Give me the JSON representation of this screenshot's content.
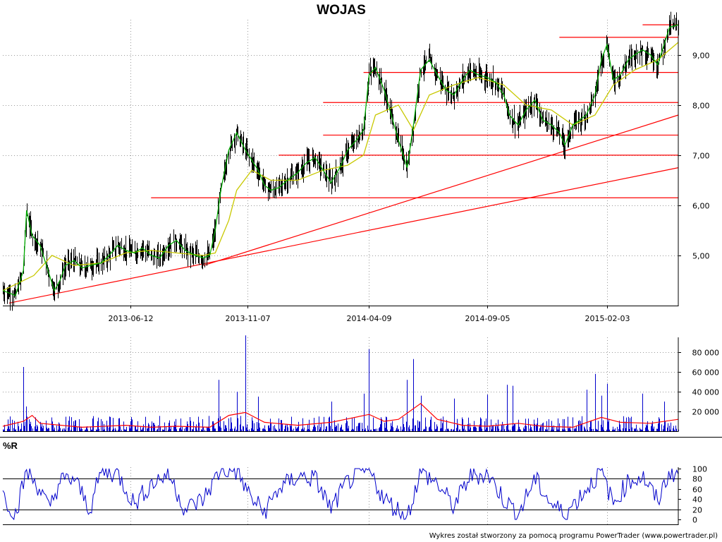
{
  "title": "WOJAS",
  "footer": "Wykres został stworzony za pomocą programu PowerTrader (www.powertrader.pl)",
  "colors": {
    "price_bars": "#000000",
    "close_line": "#00aa00",
    "moving_average": "#c8c800",
    "support_lines": "#ff0000",
    "volume_bars": "#0000cc",
    "volume_average": "#ff0000",
    "williams_r": "#0000cc"
  },
  "chart_data": [
    {
      "type": "line",
      "panel": "price",
      "title": "WOJAS",
      "x_tick_labels": [
        "2013-06-12",
        "2013-11-07",
        "2014-04-09",
        "2014-09-05",
        "2015-02-03"
      ],
      "y_tick_labels": [
        "5,00",
        "6,00",
        "7,00",
        "8,00",
        "9,00"
      ],
      "ylim": [
        4.0,
        9.7
      ],
      "grid": true,
      "series": [
        {
          "role": "close",
          "points": [
            [
              "2013-01-02",
              4.3
            ],
            [
              "2013-01-10",
              4.25
            ],
            [
              "2013-01-18",
              4.2
            ],
            [
              "2013-01-28",
              4.7
            ],
            [
              "2013-02-01",
              5.9
            ],
            [
              "2013-02-08",
              5.4
            ],
            [
              "2013-02-18",
              5.2
            ],
            [
              "2013-02-28",
              4.7
            ],
            [
              "2013-03-08",
              4.3
            ],
            [
              "2013-03-15",
              4.5
            ],
            [
              "2013-03-22",
              4.8
            ],
            [
              "2013-04-02",
              4.9
            ],
            [
              "2013-04-12",
              4.75
            ],
            [
              "2013-04-22",
              4.8
            ],
            [
              "2013-05-06",
              4.85
            ],
            [
              "2013-05-16",
              5.0
            ],
            [
              "2013-05-27",
              5.2
            ],
            [
              "2013-06-06",
              5.1
            ],
            [
              "2013-06-17",
              5.05
            ],
            [
              "2013-06-27",
              5.15
            ],
            [
              "2013-07-08",
              5.0
            ],
            [
              "2013-07-19",
              4.95
            ],
            [
              "2013-07-30",
              5.2
            ],
            [
              "2013-08-09",
              5.3
            ],
            [
              "2013-08-20",
              5.1
            ],
            [
              "2013-09-02",
              5.0
            ],
            [
              "2013-09-12",
              4.95
            ],
            [
              "2013-09-20",
              5.0
            ],
            [
              "2013-09-27",
              5.5
            ],
            [
              "2013-10-04",
              6.3
            ],
            [
              "2013-10-14",
              7.1
            ],
            [
              "2013-10-24",
              7.45
            ],
            [
              "2013-11-04",
              7.1
            ],
            [
              "2013-11-12",
              6.9
            ],
            [
              "2013-11-20",
              6.7
            ],
            [
              "2013-11-28",
              6.4
            ],
            [
              "2013-12-06",
              6.3
            ],
            [
              "2013-12-16",
              6.35
            ],
            [
              "2013-12-27",
              6.5
            ],
            [
              "2014-01-09",
              6.65
            ],
            [
              "2014-01-20",
              6.85
            ],
            [
              "2014-01-31",
              6.95
            ],
            [
              "2014-02-10",
              6.7
            ],
            [
              "2014-02-20",
              6.45
            ],
            [
              "2014-03-03",
              6.75
            ],
            [
              "2014-03-13",
              7.1
            ],
            [
              "2014-03-24",
              7.3
            ],
            [
              "2014-04-02",
              7.5
            ],
            [
              "2014-04-09",
              8.6
            ],
            [
              "2014-04-17",
              8.75
            ],
            [
              "2014-04-28",
              8.3
            ],
            [
              "2014-05-07",
              7.8
            ],
            [
              "2014-05-16",
              7.3
            ],
            [
              "2014-05-27",
              6.75
            ],
            [
              "2014-06-04",
              7.6
            ],
            [
              "2014-06-13",
              8.7
            ],
            [
              "2014-06-24",
              8.9
            ],
            [
              "2014-07-04",
              8.6
            ],
            [
              "2014-07-15",
              8.3
            ],
            [
              "2014-07-25",
              8.2
            ],
            [
              "2014-08-05",
              8.5
            ],
            [
              "2014-08-14",
              8.7
            ],
            [
              "2014-08-25",
              8.6
            ],
            [
              "2014-09-05",
              8.55
            ],
            [
              "2014-09-16",
              8.45
            ],
            [
              "2014-09-26",
              8.2
            ],
            [
              "2014-10-03",
              7.8
            ],
            [
              "2014-10-14",
              7.6
            ],
            [
              "2014-10-24",
              7.9
            ],
            [
              "2014-11-04",
              8.1
            ],
            [
              "2014-11-14",
              7.7
            ],
            [
              "2014-11-25",
              7.6
            ],
            [
              "2014-12-05",
              7.45
            ],
            [
              "2014-12-12",
              7.2
            ],
            [
              "2014-12-22",
              7.6
            ],
            [
              "2015-01-08",
              7.8
            ],
            [
              "2015-01-19",
              8.2
            ],
            [
              "2015-01-27",
              8.9
            ],
            [
              "2015-02-03",
              9.2
            ],
            [
              "2015-02-11",
              8.5
            ],
            [
              "2015-02-20",
              8.6
            ],
            [
              "2015-03-02",
              8.9
            ],
            [
              "2015-03-10",
              9.0
            ],
            [
              "2015-03-20",
              9.1
            ],
            [
              "2015-03-30",
              9.0
            ],
            [
              "2015-04-08",
              8.8
            ],
            [
              "2015-04-16",
              9.2
            ],
            [
              "2015-04-23",
              9.55
            ],
            [
              "2015-05-04",
              9.6
            ]
          ]
        },
        {
          "role": "moving_average",
          "points": [
            [
              "2013-01-02",
              4.3
            ],
            [
              "2013-02-10",
              4.6
            ],
            [
              "2013-03-05",
              5.0
            ],
            [
              "2013-04-02",
              4.8
            ],
            [
              "2013-05-06",
              4.85
            ],
            [
              "2013-06-06",
              5.05
            ],
            [
              "2013-07-08",
              5.1
            ],
            [
              "2013-08-09",
              5.05
            ],
            [
              "2013-09-12",
              5.0
            ],
            [
              "2013-09-27",
              5.05
            ],
            [
              "2013-10-14",
              5.7
            ],
            [
              "2013-10-24",
              6.3
            ],
            [
              "2013-11-12",
              6.7
            ],
            [
              "2013-12-06",
              6.5
            ],
            [
              "2014-01-09",
              6.5
            ],
            [
              "2014-02-10",
              6.7
            ],
            [
              "2014-03-13",
              6.8
            ],
            [
              "2014-04-02",
              7.0
            ],
            [
              "2014-04-17",
              7.8
            ],
            [
              "2014-05-16",
              8.0
            ],
            [
              "2014-06-04",
              7.5
            ],
            [
              "2014-06-24",
              8.2
            ],
            [
              "2014-07-25",
              8.4
            ],
            [
              "2014-08-25",
              8.55
            ],
            [
              "2014-09-26",
              8.4
            ],
            [
              "2014-10-24",
              8.0
            ],
            [
              "2014-11-25",
              7.9
            ],
            [
              "2014-12-22",
              7.6
            ],
            [
              "2015-01-19",
              7.8
            ],
            [
              "2015-02-11",
              8.4
            ],
            [
              "2015-03-10",
              8.7
            ],
            [
              "2015-04-08",
              8.9
            ],
            [
              "2015-05-04",
              9.25
            ]
          ]
        }
      ],
      "horizontal_levels": [
        {
          "y": 9.6,
          "from": "2015-03-20",
          "to": "2015-05-04"
        },
        {
          "y": 9.35,
          "from": "2014-12-05",
          "to": "2015-05-04"
        },
        {
          "y": 8.65,
          "from": "2014-04-02",
          "to": "2015-05-04"
        },
        {
          "y": 8.05,
          "from": "2014-02-10",
          "to": "2015-05-04"
        },
        {
          "y": 7.4,
          "from": "2014-02-10",
          "to": "2015-05-04"
        },
        {
          "y": 7.0,
          "from": "2013-12-16",
          "to": "2015-05-04"
        },
        {
          "y": 6.15,
          "from": "2013-07-08",
          "to": "2015-05-04"
        }
      ],
      "trend_lines": [
        {
          "from": [
            "2013-01-10",
            4.05
          ],
          "to": [
            "2015-05-04",
            6.75
          ]
        },
        {
          "from": [
            "2013-09-12",
            4.8
          ],
          "to": [
            "2015-05-04",
            7.8
          ]
        }
      ]
    },
    {
      "type": "bar",
      "panel": "volume",
      "y_tick_labels": [
        "20 000",
        "40 000",
        "60 000",
        "80 000"
      ],
      "ylim": [
        0,
        95000
      ],
      "grid": true,
      "volume_spikes": [
        [
          "2013-01-28",
          65000
        ],
        [
          "2013-01-31",
          25000
        ],
        [
          "2013-10-01",
          52000
        ],
        [
          "2013-10-24",
          40000
        ],
        [
          "2013-11-04",
          97000
        ],
        [
          "2013-11-20",
          35000
        ],
        [
          "2014-02-20",
          30000
        ],
        [
          "2014-04-02",
          38000
        ],
        [
          "2014-04-09",
          83000
        ],
        [
          "2014-04-12",
          60000
        ],
        [
          "2014-05-27",
          52000
        ],
        [
          "2014-06-04",
          73000
        ],
        [
          "2014-06-13",
          36000
        ],
        [
          "2014-07-25",
          33000
        ],
        [
          "2014-09-05",
          37000
        ],
        [
          "2014-09-30",
          47000
        ],
        [
          "2014-10-07",
          46000
        ],
        [
          "2015-01-08",
          42000
        ],
        [
          "2015-01-19",
          58000
        ],
        [
          "2015-01-27",
          36000
        ],
        [
          "2015-02-03",
          48000
        ],
        [
          "2015-03-20",
          38000
        ],
        [
          "2015-04-16",
          30000
        ]
      ],
      "average_points": [
        [
          "2013-01-02",
          5000
        ],
        [
          "2013-01-28",
          10000
        ],
        [
          "2013-02-08",
          16000
        ],
        [
          "2013-02-18",
          8000
        ],
        [
          "2013-04-12",
          4000
        ],
        [
          "2013-06-06",
          6000
        ],
        [
          "2013-07-08",
          4000
        ],
        [
          "2013-08-09",
          5000
        ],
        [
          "2013-09-20",
          4000
        ],
        [
          "2013-10-14",
          16000
        ],
        [
          "2013-11-04",
          19000
        ],
        [
          "2013-11-28",
          9000
        ],
        [
          "2014-01-09",
          6000
        ],
        [
          "2014-02-20",
          9000
        ],
        [
          "2014-04-09",
          17000
        ],
        [
          "2014-04-28",
          10000
        ],
        [
          "2014-05-16",
          12000
        ],
        [
          "2014-06-13",
          28000
        ],
        [
          "2014-07-04",
          12000
        ],
        [
          "2014-08-05",
          6000
        ],
        [
          "2014-09-05",
          5000
        ],
        [
          "2014-10-14",
          8000
        ],
        [
          "2014-11-14",
          5000
        ],
        [
          "2014-12-22",
          4000
        ],
        [
          "2015-01-27",
          14000
        ],
        [
          "2015-02-20",
          9000
        ],
        [
          "2015-03-30",
          8000
        ],
        [
          "2015-05-04",
          12000
        ]
      ]
    },
    {
      "type": "line",
      "panel": "williams_r",
      "title": "%R",
      "y_tick_labels": [
        "0",
        "20",
        "40",
        "60",
        "80",
        "100"
      ],
      "ylim": [
        0,
        100
      ],
      "reference_levels": [
        20,
        80
      ],
      "points": [
        [
          "2013-01-02",
          50
        ],
        [
          "2013-01-18",
          10
        ],
        [
          "2013-02-01",
          95
        ],
        [
          "2013-02-18",
          60
        ],
        [
          "2013-03-01",
          20
        ],
        [
          "2013-03-15",
          75
        ],
        [
          "2013-04-02",
          80
        ],
        [
          "2013-04-22",
          20
        ],
        [
          "2013-05-06",
          95
        ],
        [
          "2013-05-27",
          90
        ],
        [
          "2013-06-17",
          30
        ],
        [
          "2013-07-08",
          70
        ],
        [
          "2013-07-30",
          90
        ],
        [
          "2013-08-20",
          20
        ],
        [
          "2013-09-12",
          40
        ],
        [
          "2013-10-04",
          98
        ],
        [
          "2013-10-24",
          95
        ],
        [
          "2013-11-12",
          40
        ],
        [
          "2013-11-28",
          15
        ],
        [
          "2013-12-16",
          60
        ],
        [
          "2014-01-09",
          85
        ],
        [
          "2014-01-31",
          80
        ],
        [
          "2014-02-20",
          20
        ],
        [
          "2014-03-13",
          75
        ],
        [
          "2014-04-09",
          97
        ],
        [
          "2014-04-28",
          40
        ],
        [
          "2014-05-27",
          5
        ],
        [
          "2014-06-13",
          95
        ],
        [
          "2014-07-04",
          70
        ],
        [
          "2014-07-25",
          25
        ],
        [
          "2014-08-14",
          85
        ],
        [
          "2014-09-05",
          90
        ],
        [
          "2014-09-26",
          40
        ],
        [
          "2014-10-14",
          10
        ],
        [
          "2014-11-04",
          80
        ],
        [
          "2014-11-25",
          30
        ],
        [
          "2014-12-12",
          10
        ],
        [
          "2015-01-08",
          60
        ],
        [
          "2015-01-27",
          95
        ],
        [
          "2015-02-11",
          30
        ],
        [
          "2015-03-02",
          75
        ],
        [
          "2015-03-20",
          85
        ],
        [
          "2015-04-08",
          35
        ],
        [
          "2015-04-23",
          95
        ],
        [
          "2015-05-04",
          90
        ]
      ]
    }
  ]
}
